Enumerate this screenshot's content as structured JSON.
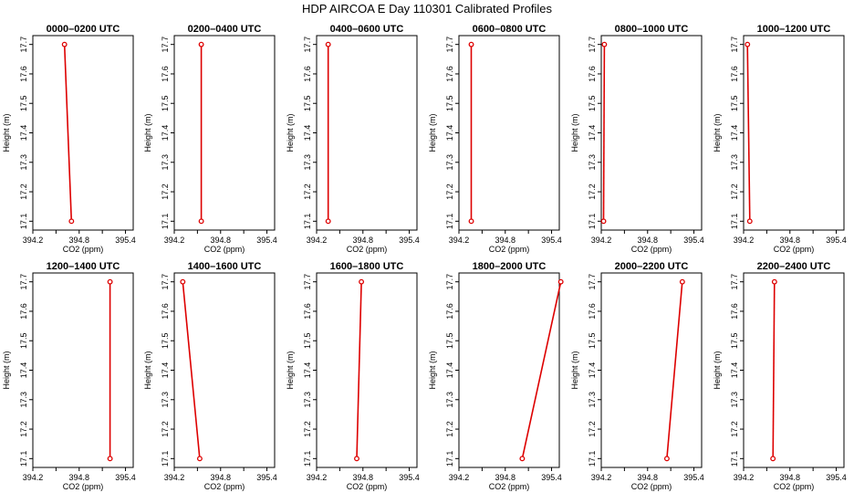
{
  "figure_title": "HDP AIRCOA E  Day 110301  Calibrated Profiles",
  "colors": {
    "line": "#dd0000",
    "marker": "#dd0000",
    "axis": "#000000"
  },
  "chart_data": [
    {
      "type": "line",
      "title": "0000–0200 UTC",
      "xlabel": "CO2 (ppm)",
      "ylabel": "Height (m)",
      "xlim": [
        394.2,
        395.5
      ],
      "ylim": [
        17.07,
        17.73
      ],
      "xticks": [
        "394.2",
        "394.8",
        "395.4"
      ],
      "yticks": [
        "17.1",
        "17.2",
        "17.3",
        "17.4",
        "17.5",
        "17.6",
        "17.7"
      ],
      "series": [
        {
          "x": [
            394.7,
            394.61
          ],
          "y": [
            17.1,
            17.7
          ]
        }
      ]
    },
    {
      "type": "line",
      "title": "0200–0400 UTC",
      "xlabel": "CO2 (ppm)",
      "ylabel": "Height (m)",
      "xlim": [
        394.2,
        395.5
      ],
      "ylim": [
        17.07,
        17.73
      ],
      "xticks": [
        "394.2",
        "394.8",
        "395.4"
      ],
      "yticks": [
        "17.1",
        "17.2",
        "17.3",
        "17.4",
        "17.5",
        "17.6",
        "17.7"
      ],
      "series": [
        {
          "x": [
            394.55,
            394.55
          ],
          "y": [
            17.1,
            17.7
          ]
        }
      ]
    },
    {
      "type": "line",
      "title": "0400–0600 UTC",
      "xlabel": "CO2 (ppm)",
      "ylabel": "Height (m)",
      "xlim": [
        394.2,
        395.5
      ],
      "ylim": [
        17.07,
        17.73
      ],
      "xticks": [
        "394.2",
        "394.8",
        "395.4"
      ],
      "yticks": [
        "17.1",
        "17.2",
        "17.3",
        "17.4",
        "17.5",
        "17.6",
        "17.7"
      ],
      "series": [
        {
          "x": [
            394.35,
            394.35
          ],
          "y": [
            17.1,
            17.7
          ]
        }
      ]
    },
    {
      "type": "line",
      "title": "0600–0800 UTC",
      "xlabel": "CO2 (ppm)",
      "ylabel": "Height (m)",
      "xlim": [
        394.2,
        395.5
      ],
      "ylim": [
        17.07,
        17.73
      ],
      "xticks": [
        "394.2",
        "394.8",
        "395.4"
      ],
      "yticks": [
        "17.1",
        "17.2",
        "17.3",
        "17.4",
        "17.5",
        "17.6",
        "17.7"
      ],
      "series": [
        {
          "x": [
            394.36,
            394.36
          ],
          "y": [
            17.1,
            17.7
          ]
        }
      ]
    },
    {
      "type": "line",
      "title": "0800–1000 UTC",
      "xlabel": "CO2 (ppm)",
      "ylabel": "Height (m)",
      "xlim": [
        394.2,
        395.5
      ],
      "ylim": [
        17.07,
        17.73
      ],
      "xticks": [
        "394.2",
        "394.8",
        "395.4"
      ],
      "yticks": [
        "17.1",
        "17.2",
        "17.3",
        "17.4",
        "17.5",
        "17.6",
        "17.7"
      ],
      "series": [
        {
          "x": [
            394.23,
            394.24
          ],
          "y": [
            17.1,
            17.7
          ]
        }
      ]
    },
    {
      "type": "line",
      "title": "1000–1200 UTC",
      "xlabel": "CO2 (ppm)",
      "ylabel": "Height (m)",
      "xlim": [
        394.2,
        395.5
      ],
      "ylim": [
        17.07,
        17.73
      ],
      "xticks": [
        "394.2",
        "394.8",
        "395.4"
      ],
      "yticks": [
        "17.1",
        "17.2",
        "17.3",
        "17.4",
        "17.5",
        "17.6",
        "17.7"
      ],
      "series": [
        {
          "x": [
            394.28,
            394.25
          ],
          "y": [
            17.1,
            17.7
          ]
        }
      ]
    },
    {
      "type": "line",
      "title": "1200–1400 UTC",
      "xlabel": "CO2 (ppm)",
      "ylabel": "Height (m)",
      "xlim": [
        394.2,
        395.5
      ],
      "ylim": [
        17.07,
        17.73
      ],
      "xticks": [
        "394.2",
        "394.8",
        "395.4"
      ],
      "yticks": [
        "17.1",
        "17.2",
        "17.3",
        "17.4",
        "17.5",
        "17.6",
        "17.7"
      ],
      "series": [
        {
          "x": [
            395.2,
            395.2
          ],
          "y": [
            17.1,
            17.7
          ]
        }
      ]
    },
    {
      "type": "line",
      "title": "1400–1600 UTC",
      "xlabel": "CO2 (ppm)",
      "ylabel": "Height (m)",
      "xlim": [
        394.2,
        395.5
      ],
      "ylim": [
        17.07,
        17.73
      ],
      "xticks": [
        "394.2",
        "394.8",
        "395.4"
      ],
      "yticks": [
        "17.1",
        "17.2",
        "17.3",
        "17.4",
        "17.5",
        "17.6",
        "17.7"
      ],
      "series": [
        {
          "x": [
            394.53,
            394.31
          ],
          "y": [
            17.1,
            17.7
          ]
        }
      ]
    },
    {
      "type": "line",
      "title": "1600–1800 UTC",
      "xlabel": "CO2 (ppm)",
      "ylabel": "Height (m)",
      "xlim": [
        394.2,
        395.5
      ],
      "ylim": [
        17.07,
        17.73
      ],
      "xticks": [
        "394.2",
        "394.8",
        "395.4"
      ],
      "yticks": [
        "17.1",
        "17.2",
        "17.3",
        "17.4",
        "17.5",
        "17.6",
        "17.7"
      ],
      "series": [
        {
          "x": [
            394.72,
            394.78
          ],
          "y": [
            17.1,
            17.7
          ]
        }
      ]
    },
    {
      "type": "line",
      "title": "1800–2000 UTC",
      "xlabel": "CO2 (ppm)",
      "ylabel": "Height (m)",
      "xlim": [
        394.2,
        395.5
      ],
      "ylim": [
        17.07,
        17.73
      ],
      "xticks": [
        "394.2",
        "394.8",
        "395.4"
      ],
      "yticks": [
        "17.1",
        "17.2",
        "17.3",
        "17.4",
        "17.5",
        "17.6",
        "17.7"
      ],
      "series": [
        {
          "x": [
            395.02,
            395.52
          ],
          "y": [
            17.1,
            17.7
          ]
        }
      ]
    },
    {
      "type": "line",
      "title": "2000–2200 UTC",
      "xlabel": "CO2 (ppm)",
      "ylabel": "Height (m)",
      "xlim": [
        394.2,
        395.5
      ],
      "ylim": [
        17.07,
        17.73
      ],
      "xticks": [
        "394.2",
        "394.8",
        "395.4"
      ],
      "yticks": [
        "17.1",
        "17.2",
        "17.3",
        "17.4",
        "17.5",
        "17.6",
        "17.7"
      ],
      "series": [
        {
          "x": [
            395.05,
            395.25
          ],
          "y": [
            17.1,
            17.7
          ]
        }
      ]
    },
    {
      "type": "line",
      "title": "2200–2400 UTC",
      "xlabel": "CO2 (ppm)",
      "ylabel": "Height (m)",
      "xlim": [
        394.2,
        395.5
      ],
      "ylim": [
        17.07,
        17.73
      ],
      "xticks": [
        "394.2",
        "394.8",
        "395.4"
      ],
      "yticks": [
        "17.1",
        "17.2",
        "17.3",
        "17.4",
        "17.5",
        "17.6",
        "17.7"
      ],
      "series": [
        {
          "x": [
            394.58,
            394.6
          ],
          "y": [
            17.1,
            17.7
          ]
        }
      ]
    }
  ]
}
